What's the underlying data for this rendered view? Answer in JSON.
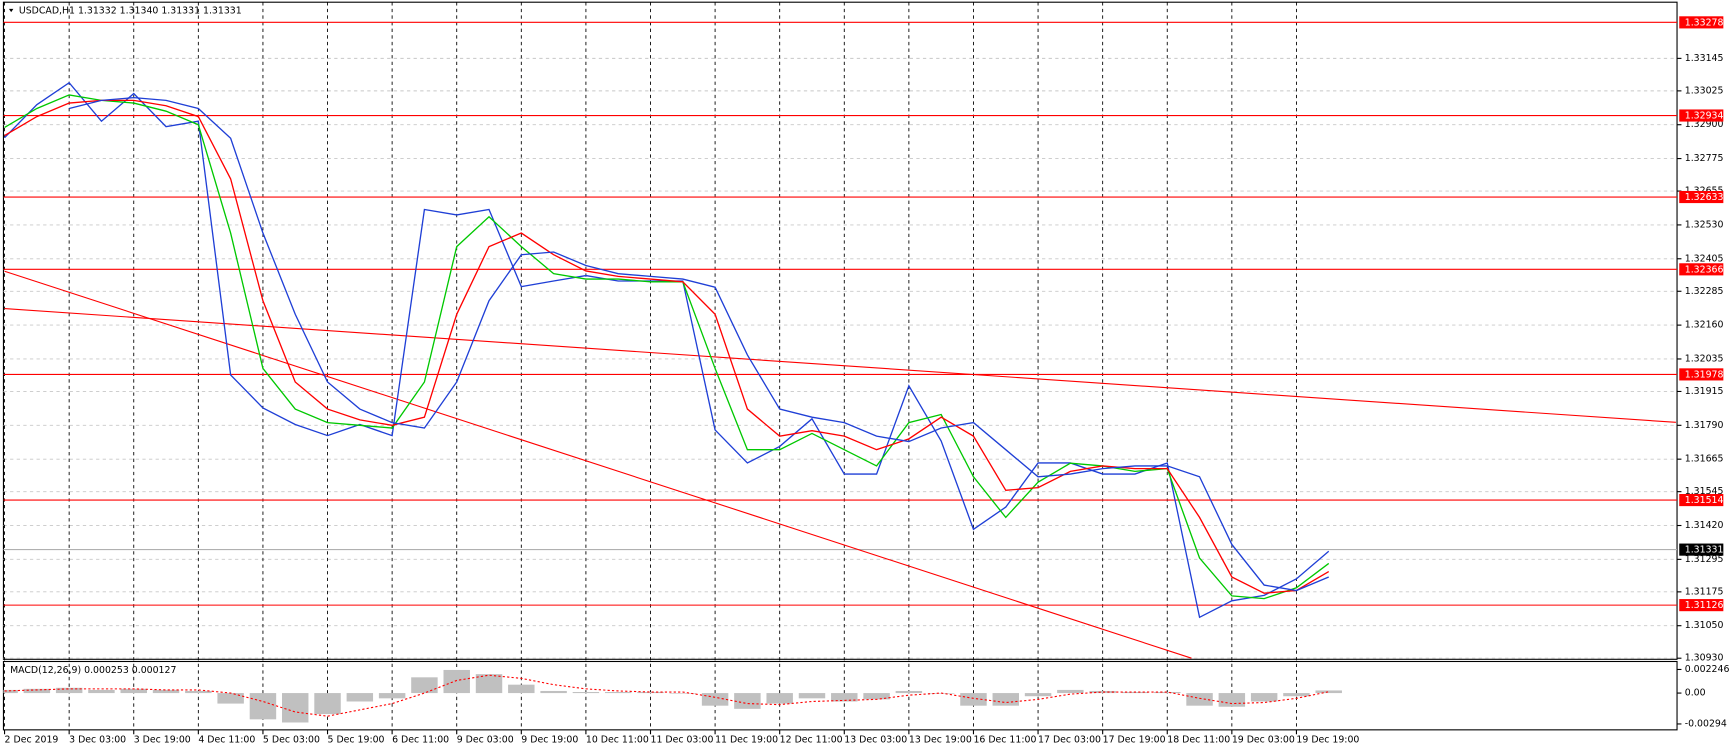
{
  "chart_data": {
    "type": "line",
    "title": "USDCAD,H1  1.31332 1.31340 1.31331 1.31331",
    "x": [
      0,
      8,
      16,
      24,
      32,
      40,
      48,
      56,
      64,
      72,
      80,
      88,
      96,
      104,
      112,
      120,
      128,
      136,
      144,
      152,
      160,
      168,
      176,
      184,
      192,
      200,
      208,
      216,
      224,
      232,
      240,
      248,
      256,
      264,
      272,
      280,
      288,
      296,
      304,
      312,
      320,
      328
    ],
    "xlim": [
      0,
      414
    ],
    "xticks": [
      {
        "value": 0,
        "label": "2 Dec 2019"
      },
      {
        "value": 16,
        "label": "3 Dec 03:00"
      },
      {
        "value": 32,
        "label": "3 Dec 19:00"
      },
      {
        "value": 48,
        "label": "4 Dec 11:00"
      },
      {
        "value": 64,
        "label": "5 Dec 03:00"
      },
      {
        "value": 80,
        "label": "5 Dec 19:00"
      },
      {
        "value": 96,
        "label": "6 Dec 11:00"
      },
      {
        "value": 112,
        "label": "9 Dec 03:00"
      },
      {
        "value": 128,
        "label": "9 Dec 19:00"
      },
      {
        "value": 144,
        "label": "10 Dec 11:00"
      },
      {
        "value": 160,
        "label": "11 Dec 03:00"
      },
      {
        "value": 176,
        "label": "11 Dec 19:00"
      },
      {
        "value": 192,
        "label": "12 Dec 11:00"
      },
      {
        "value": 208,
        "label": "13 Dec 03:00"
      },
      {
        "value": 224,
        "label": "13 Dec 19:00"
      },
      {
        "value": 240,
        "label": "16 Dec 11:00"
      },
      {
        "value": 256,
        "label": "17 Dec 03:00"
      },
      {
        "value": 272,
        "label": "17 Dec 19:00"
      },
      {
        "value": 288,
        "label": "18 Dec 11:00"
      },
      {
        "value": 304,
        "label": "19 Dec 03:00"
      },
      {
        "value": 320,
        "label": "19 Dec 19:00"
      }
    ],
    "ylim": [
      1.30926,
      1.33328
    ],
    "yticks": [
      1.33145,
      1.33025,
      {
        "value": 1.329,
        "label": "1.32900"
      },
      1.32775,
      1.32655,
      {
        "value": 1.3253,
        "label": "1.32530"
      },
      1.32405,
      1.32285,
      {
        "value": 1.3216,
        "label": "1.32160"
      },
      1.32035,
      1.31915,
      {
        "value": 1.3179,
        "label": "1.31790"
      },
      1.31665,
      1.31545,
      {
        "value": 1.3142,
        "label": "1.31420"
      },
      1.31295,
      1.31175,
      {
        "value": 1.3105,
        "label": "1.31050"
      },
      {
        "value": 1.3093,
        "label": "1.30930"
      }
    ],
    "grid": true,
    "series": [
      {
        "color": "#1f3fd6",
        "values": [
          1.32852,
          1.32974,
          1.33055,
          1.32913,
          1.33015,
          1.32893,
          1.32913,
          1.31976,
          1.31854,
          1.31793,
          1.31752,
          1.31793,
          1.31752,
          1.32587,
          1.32567,
          1.32587,
          1.32302,
          1.32323,
          1.32343,
          1.32323,
          1.32323,
          1.32323,
          1.31773,
          1.31651,
          1.31712,
          1.31814,
          1.3161,
          1.3161,
          1.31936,
          1.31732,
          1.31406,
          1.31488,
          1.31651,
          1.31651,
          1.3161,
          1.3161,
          1.31651,
          1.31081,
          1.31142,
          1.31162,
          1.31223,
          1.31325
        ]
      },
      {
        "color": "#00c800",
        "values": [
          1.3289,
          1.3296,
          1.3301,
          1.3299,
          1.3298,
          1.3295,
          1.329,
          1.325,
          1.32,
          1.3185,
          1.318,
          1.3179,
          1.3178,
          1.3195,
          1.3245,
          1.3256,
          1.3245,
          1.3235,
          1.3233,
          1.3233,
          1.3232,
          1.3232,
          1.32,
          1.317,
          1.317,
          1.3176,
          1.317,
          1.3164,
          1.318,
          1.3183,
          1.316,
          1.3145,
          1.3158,
          1.3165,
          1.3164,
          1.3162,
          1.3163,
          1.313,
          1.3116,
          1.3115,
          1.3119,
          1.3128
        ]
      },
      {
        "color": "#ff0000",
        "values": [
          1.3286,
          1.3293,
          1.3298,
          1.3299,
          1.3299,
          1.3297,
          1.3293,
          1.327,
          1.3225,
          1.3195,
          1.3185,
          1.3181,
          1.3179,
          1.3182,
          1.322,
          1.3245,
          1.325,
          1.3242,
          1.3236,
          1.3234,
          1.3233,
          1.3232,
          1.322,
          1.3185,
          1.3175,
          1.3177,
          1.3175,
          1.317,
          1.3174,
          1.3182,
          1.3175,
          1.3155,
          1.3156,
          1.3162,
          1.3164,
          1.3163,
          1.3163,
          1.3145,
          1.3123,
          1.3117,
          1.3118,
          1.3125
        ]
      },
      {
        "color": "#1f3fd6",
        "values": [
          null,
          null,
          1.3296,
          1.3299,
          1.33,
          1.3299,
          1.3296,
          1.3285,
          1.325,
          1.322,
          1.3195,
          1.3185,
          1.318,
          1.3178,
          1.3195,
          1.3225,
          1.3242,
          1.3243,
          1.3238,
          1.3235,
          1.3234,
          1.3233,
          1.323,
          1.3205,
          1.3185,
          1.3182,
          1.318,
          1.3175,
          1.3173,
          1.3178,
          1.318,
          1.317,
          1.316,
          1.3161,
          1.3163,
          1.3164,
          1.3164,
          1.316,
          1.3135,
          1.312,
          1.3118,
          1.3123
        ]
      }
    ],
    "levels": [
      {
        "value": 1.33278,
        "color": "#ff0000"
      },
      {
        "value": 1.32934,
        "color": "#ff0000"
      },
      {
        "value": 1.32633,
        "color": "#ff0000"
      },
      {
        "value": 1.32366,
        "color": "#ff0000"
      },
      {
        "value": 1.31978,
        "color": "#ff0000"
      },
      {
        "value": 1.31514,
        "color": "#ff0000"
      },
      {
        "value": 1.31126,
        "color": "#ff0000"
      }
    ],
    "current": {
      "value": 1.31331,
      "color": "#000000"
    },
    "trendlines": [
      {
        "color": "#ff0000",
        "x": [
          0,
          294
        ],
        "values": [
          1.32359,
          1.3093
        ]
      },
      {
        "color": "#ff0000",
        "x": [
          0,
          414
        ],
        "values": [
          1.32221,
          1.31801
        ]
      }
    ],
    "macd": {
      "title": "MACD(12,26,9) 0.000253 0.000127",
      "ylim": [
        -0.0035,
        0.0029
      ],
      "yticks": [
        0.002246,
        {
          "value": 0,
          "label": "0.00"
        },
        -0.00294
      ],
      "histogram_color": "#c0c0c0",
      "signal_color": "#ff0000",
      "histogram": [
        0.0003,
        0.0004,
        0.0005,
        0.0003,
        0.0004,
        0.0003,
        0.0002,
        -0.001,
        -0.0025,
        -0.0028,
        -0.002,
        -0.0008,
        -0.0005,
        0.0015,
        0.0022,
        0.0018,
        0.0008,
        0.0002,
        0.0001,
        0.0001,
        0.0001,
        0,
        -0.0012,
        -0.0015,
        -0.001,
        -0.0005,
        -0.0008,
        -0.0006,
        0.0002,
        0,
        -0.0012,
        -0.0012,
        -0.0003,
        0.0003,
        0.0002,
        0.0001,
        0.0001,
        -0.0012,
        -0.0013,
        -0.0008,
        -0.0003,
        0.00025
      ],
      "signal": [
        0.0002,
        0.0003,
        0.0004,
        0.0004,
        0.0004,
        0.0003,
        0.0003,
        0,
        -0.0008,
        -0.0018,
        -0.0022,
        -0.0016,
        -0.001,
        0,
        0.0012,
        0.0017,
        0.0014,
        0.0008,
        0.0004,
        0.0002,
        0.0001,
        0.0001,
        -0.0004,
        -0.001,
        -0.0011,
        -0.0008,
        -0.0007,
        -0.0006,
        -0.0002,
        0,
        -0.0005,
        -0.0009,
        -0.0006,
        -0.0001,
        0.0001,
        0.0001,
        0.0001,
        -0.0005,
        -0.001,
        -0.0009,
        -0.0005,
        0.000127
      ]
    }
  }
}
